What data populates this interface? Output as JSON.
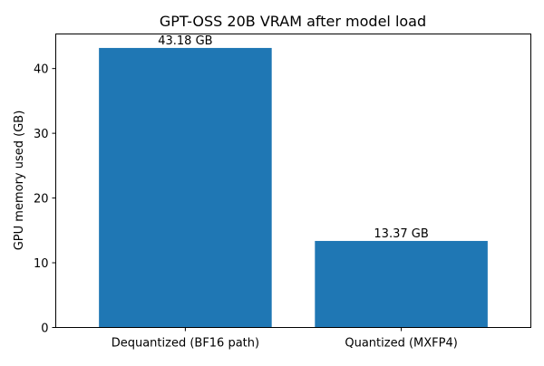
{
  "chart_data": {
    "type": "bar",
    "title": "GPT-OSS 20B VRAM after model load",
    "xlabel": "",
    "ylabel": "GPU memory used (GB)",
    "categories": [
      "Dequantized (BF16 path)",
      "Quantized (MXFP4)"
    ],
    "values": [
      43.18,
      13.37
    ],
    "data_labels": [
      "43.18 GB",
      "13.37 GB"
    ],
    "ylim": [
      0,
      45.34
    ],
    "yticks": [
      0,
      10,
      20,
      30,
      40
    ],
    "grid": false,
    "bar_color": "#1f77b4"
  }
}
